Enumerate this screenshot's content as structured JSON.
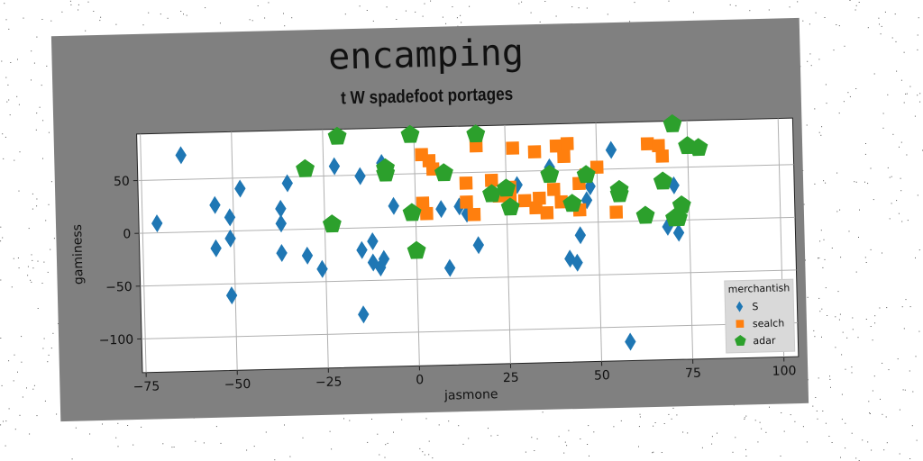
{
  "chart_data": {
    "type": "scatter",
    "title": "encamping",
    "subtitle": "t W spadefoot portages",
    "xlabel": "jasmone",
    "ylabel": "gaminess",
    "xlim": [
      -76,
      104
    ],
    "ylim": [
      -132,
      94
    ],
    "xticks": [
      -75,
      -50,
      -25,
      0,
      25,
      50,
      75,
      100
    ],
    "yticks": [
      -100,
      -50,
      0,
      50
    ],
    "grid": true,
    "legend_title": "merchantish",
    "legend_position": "lower-right",
    "series": [
      {
        "name": "S",
        "color": "#1f77b4",
        "marker": "diamond",
        "points": [
          [
            -71,
            9
          ],
          [
            -64,
            73
          ],
          [
            -55,
            25
          ],
          [
            -55,
            -16
          ],
          [
            -51,
            -7
          ],
          [
            -51,
            13
          ],
          [
            -51,
            -61
          ],
          [
            -48,
            40
          ],
          [
            -37,
            20
          ],
          [
            -37,
            6
          ],
          [
            -37,
            -22
          ],
          [
            -35,
            44
          ],
          [
            -30,
            -25
          ],
          [
            -26,
            -38
          ],
          [
            -22,
            59
          ],
          [
            -15,
            -21
          ],
          [
            -15,
            49
          ],
          [
            -12,
            -13
          ],
          [
            -12,
            -33
          ],
          [
            -10,
            -38
          ],
          [
            -9,
            -30
          ],
          [
            -9,
            61
          ],
          [
            -6,
            20
          ],
          [
            -15,
            -82
          ],
          [
            7,
            16
          ],
          [
            9,
            -40
          ],
          [
            12,
            18
          ],
          [
            14,
            11
          ],
          [
            17,
            -19
          ],
          [
            28,
            37
          ],
          [
            37,
            53
          ],
          [
            42,
            -34
          ],
          [
            44,
            -38
          ],
          [
            45,
            -12
          ],
          [
            47,
            21
          ],
          [
            48,
            34
          ],
          [
            54,
            68
          ],
          [
            58,
            -114
          ],
          [
            69,
            -6
          ],
          [
            71,
            33
          ],
          [
            72,
            -12
          ],
          [
            95,
            -76
          ]
        ]
      },
      {
        "name": "sealch",
        "color": "#ff7f0e",
        "marker": "square",
        "points": [
          [
            2,
            68
          ],
          [
            4,
            62
          ],
          [
            5,
            54
          ],
          [
            2,
            22
          ],
          [
            3,
            12
          ],
          [
            14,
            40
          ],
          [
            14,
            22
          ],
          [
            16,
            10
          ],
          [
            17,
            75
          ],
          [
            21,
            42
          ],
          [
            23,
            27
          ],
          [
            26,
            35
          ],
          [
            26,
            26
          ],
          [
            27,
            72
          ],
          [
            30,
            22
          ],
          [
            33,
            68
          ],
          [
            33,
            15
          ],
          [
            34,
            24
          ],
          [
            36,
            10
          ],
          [
            38,
            32
          ],
          [
            39,
            73
          ],
          [
            40,
            20
          ],
          [
            41,
            63
          ],
          [
            42,
            75
          ],
          [
            45,
            37
          ],
          [
            45,
            12
          ],
          [
            47,
            45
          ],
          [
            50,
            52
          ],
          [
            55,
            9
          ],
          [
            64,
            73
          ],
          [
            67,
            71
          ],
          [
            68,
            61
          ]
        ]
      },
      {
        "name": "adar",
        "color": "#2ca02c",
        "marker": "pentagon",
        "points": [
          [
            -30,
            57
          ],
          [
            -21,
            87
          ],
          [
            -23,
            4
          ],
          [
            -8,
            56
          ],
          [
            -8,
            51
          ],
          [
            -1,
            87
          ],
          [
            -1,
            13
          ],
          [
            0,
            -23
          ],
          [
            8,
            50
          ],
          [
            17,
            86
          ],
          [
            21,
            29
          ],
          [
            25,
            34
          ],
          [
            26,
            16
          ],
          [
            37,
            46
          ],
          [
            43,
            18
          ],
          [
            47,
            45
          ],
          [
            56,
            30
          ],
          [
            56,
            26
          ],
          [
            63,
            5
          ],
          [
            68,
            37
          ],
          [
            71,
            91
          ],
          [
            71,
            2
          ],
          [
            72,
            2
          ],
          [
            73,
            14
          ],
          [
            75,
            70
          ],
          [
            78,
            68
          ]
        ]
      }
    ]
  }
}
